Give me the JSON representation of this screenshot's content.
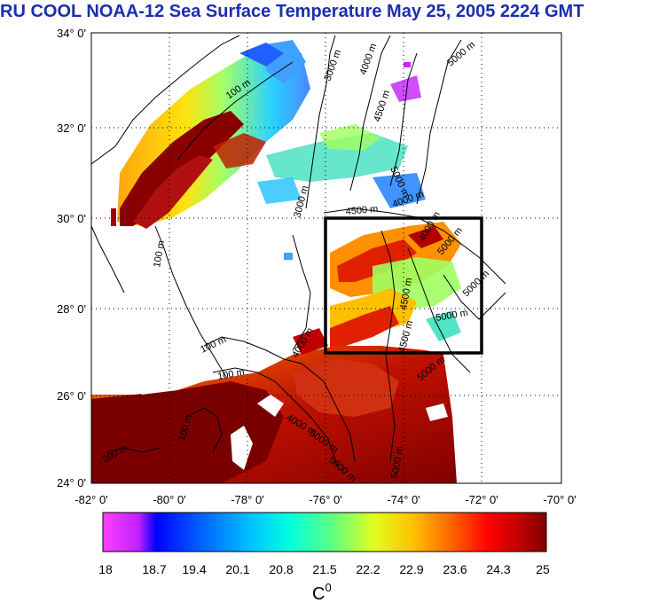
{
  "title": "RU COOL  NOAA-12 Sea Surface Temperature May 25, 2005 2224 GMT",
  "map": {
    "lat_labels": [
      "34° 0'",
      "32° 0'",
      "30° 0'",
      "28° 0'",
      "26° 0'",
      "24° 0'"
    ],
    "lon_labels": [
      "-82° 0'",
      "-80° 0'",
      "-78° 0'",
      "-76° 0'",
      "-74° 0'",
      "-72° 0'",
      "-70° 0'"
    ],
    "lat_range": [
      24,
      34
    ],
    "lon_range": [
      -82,
      -70
    ],
    "grid": true,
    "contour_labels": [
      "3000 m",
      "4000 m",
      "4500 m",
      "5000 m",
      "100 m",
      "3000 m",
      "4500 m",
      "4000 m",
      "5000 m",
      "100 m",
      "5000 m",
      "4500 m",
      "5000 m",
      "4500 m",
      "5000 m",
      "100 m",
      "100 m",
      "100 m",
      "200 m",
      "4000 m",
      "5000 m",
      "4000 m",
      "4000 m",
      "5000 m",
      "5000 m",
      "5000 m"
    ],
    "study_box": {
      "lon_range": [
        -76,
        -72
      ],
      "lat_range": [
        27,
        30
      ]
    }
  },
  "colorbar": {
    "ticks": [
      "18",
      "18.7",
      "19.4",
      "20.1",
      "20.8",
      "21.5",
      "22.2",
      "22.9",
      "23.6",
      "24.3",
      "25"
    ],
    "range": [
      18,
      25
    ],
    "unit_base": "C",
    "unit_sup": "0",
    "colors": [
      "#ff40ff",
      "#c020ff",
      "#0000ff",
      "#0060ff",
      "#00c0ff",
      "#00ffe0",
      "#60ff80",
      "#e0ff20",
      "#ffc000",
      "#ff6000",
      "#ff0000",
      "#c00000",
      "#800000"
    ]
  }
}
